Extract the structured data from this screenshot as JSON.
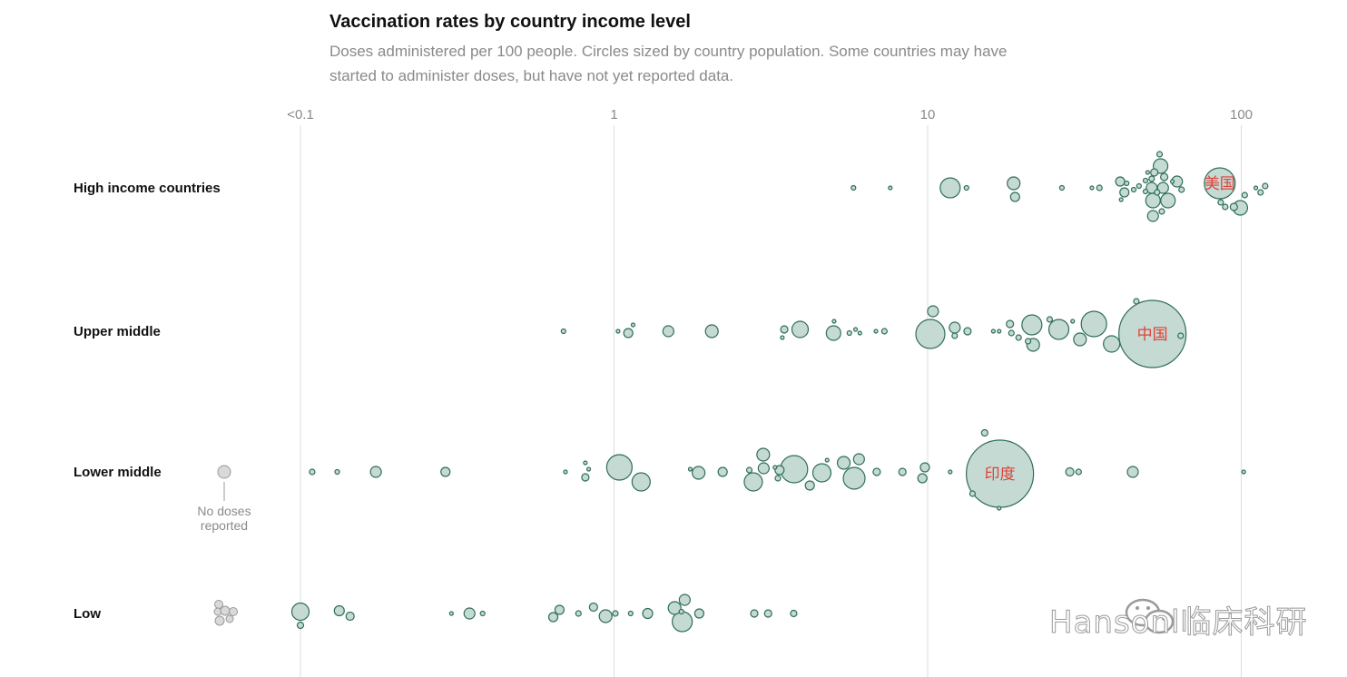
{
  "header": {
    "title": "Vaccination rates by country income level",
    "subtitle": "Doses administered per 100 people. Circles sized by country population. Some countries may have started to administer doses, but have not yet reported data."
  },
  "annotation": {
    "no_doses": "No doses reported"
  },
  "labels": {
    "usa": "美国",
    "china": "中国",
    "india": "印度"
  },
  "watermark": {
    "text": "Hansonl临床科研",
    "icon": "wechat-icon"
  },
  "colors": {
    "bubble_fill": "#c4dad3",
    "bubble_stroke": "#2f6e5a",
    "none_fill": "#d9d9d9",
    "none_stroke": "#999999",
    "label_red": "#e0413a",
    "grid": "#dddddd"
  },
  "chart_data": {
    "type": "scatter",
    "title": "Vaccination rates by country income level",
    "xscale": "log",
    "xlim": [
      0.1,
      100
    ],
    "xticks": [
      {
        "value": 0.1,
        "label": "<0.1"
      },
      {
        "value": 1,
        "label": "1"
      },
      {
        "value": 10,
        "label": "10"
      },
      {
        "value": 100,
        "label": "100"
      }
    ],
    "grid": true,
    "rows": [
      {
        "name": "High income countries",
        "points": [
          {
            "x": 5.8,
            "dy": 0,
            "r": 2.5
          },
          {
            "x": 7.6,
            "dy": 0,
            "r": 2
          },
          {
            "x": 11.8,
            "dy": 0,
            "r": 11
          },
          {
            "x": 13.3,
            "dy": 0,
            "r": 2.5
          },
          {
            "x": 18.8,
            "dy": -5,
            "r": 7
          },
          {
            "x": 19.0,
            "dy": 10,
            "r": 5
          },
          {
            "x": 26.8,
            "dy": 0,
            "r": 2.5
          },
          {
            "x": 33.4,
            "dy": 0,
            "r": 2
          },
          {
            "x": 35.3,
            "dy": 0,
            "r": 3
          },
          {
            "x": 41.1,
            "dy": -7,
            "r": 5
          },
          {
            "x": 42.4,
            "dy": 5,
            "r": 5
          },
          {
            "x": 41.4,
            "dy": 13,
            "r": 2
          },
          {
            "x": 43.1,
            "dy": -5,
            "r": 2.5
          },
          {
            "x": 45.4,
            "dy": 2,
            "r": 2.5
          },
          {
            "x": 47.2,
            "dy": -2,
            "r": 2.5
          },
          {
            "x": 49.5,
            "dy": -8,
            "r": 2.5
          },
          {
            "x": 49.5,
            "dy": 4,
            "r": 2.5
          },
          {
            "x": 50.3,
            "dy": -17,
            "r": 2
          },
          {
            "x": 51.8,
            "dy": -10,
            "r": 3
          },
          {
            "x": 51.8,
            "dy": 0,
            "r": 6
          },
          {
            "x": 52.3,
            "dy": 14,
            "r": 8
          },
          {
            "x": 52.3,
            "dy": 31,
            "r": 6
          },
          {
            "x": 52.8,
            "dy": -17,
            "r": 4
          },
          {
            "x": 53.9,
            "dy": 5,
            "r": 3
          },
          {
            "x": 54.9,
            "dy": -37,
            "r": 3
          },
          {
            "x": 55.3,
            "dy": -24,
            "r": 8
          },
          {
            "x": 55.8,
            "dy": 26,
            "r": 3
          },
          {
            "x": 56.8,
            "dy": -12,
            "r": 4
          },
          {
            "x": 56.3,
            "dy": 0,
            "r": 6
          },
          {
            "x": 58.4,
            "dy": 14,
            "r": 8
          },
          {
            "x": 60.3,
            "dy": -7,
            "r": 2
          },
          {
            "x": 62.4,
            "dy": -7,
            "r": 6
          },
          {
            "x": 64.5,
            "dy": 2,
            "r": 3
          },
          {
            "x": 85.4,
            "dy": -5,
            "r": 17,
            "label": "usa"
          },
          {
            "x": 86.0,
            "dy": 16,
            "r": 3
          },
          {
            "x": 88.9,
            "dy": 21,
            "r": 3
          },
          {
            "x": 94.7,
            "dy": 21,
            "r": 4
          },
          {
            "x": 99.3,
            "dy": 22,
            "r": 8
          },
          {
            "x": 102.6,
            "dy": 8,
            "r": 3
          },
          {
            "x": 111.3,
            "dy": 0,
            "r": 2
          },
          {
            "x": 115.2,
            "dy": 5,
            "r": 3
          },
          {
            "x": 119.2,
            "dy": -2,
            "r": 3
          }
        ]
      },
      {
        "name": "Upper middle",
        "points": [
          {
            "x": 0.69,
            "dy": 0,
            "r": 2.5
          },
          {
            "x": 1.03,
            "dy": 0,
            "r": 2
          },
          {
            "x": 1.11,
            "dy": 2,
            "r": 5
          },
          {
            "x": 1.15,
            "dy": -7,
            "r": 2
          },
          {
            "x": 1.49,
            "dy": 0,
            "r": 6
          },
          {
            "x": 2.05,
            "dy": 0,
            "r": 7
          },
          {
            "x": 3.49,
            "dy": -2,
            "r": 4
          },
          {
            "x": 3.44,
            "dy": 7,
            "r": 2
          },
          {
            "x": 3.92,
            "dy": -2,
            "r": 9
          },
          {
            "x": 5.01,
            "dy": 2,
            "r": 8
          },
          {
            "x": 5.03,
            "dy": -11,
            "r": 2
          },
          {
            "x": 5.63,
            "dy": 2,
            "r": 2.5
          },
          {
            "x": 5.89,
            "dy": -2,
            "r": 2
          },
          {
            "x": 6.08,
            "dy": 2,
            "r": 2
          },
          {
            "x": 6.84,
            "dy": 0,
            "r": 2
          },
          {
            "x": 7.28,
            "dy": 0,
            "r": 3
          },
          {
            "x": 10.2,
            "dy": 3,
            "r": 16
          },
          {
            "x": 10.4,
            "dy": -22,
            "r": 6
          },
          {
            "x": 12.2,
            "dy": -4,
            "r": 6
          },
          {
            "x": 12.2,
            "dy": 5,
            "r": 3
          },
          {
            "x": 13.4,
            "dy": 0,
            "r": 4
          },
          {
            "x": 16.2,
            "dy": 0,
            "r": 2
          },
          {
            "x": 16.9,
            "dy": 0,
            "r": 2
          },
          {
            "x": 18.3,
            "dy": -8,
            "r": 4
          },
          {
            "x": 18.5,
            "dy": 2,
            "r": 3
          },
          {
            "x": 19.5,
            "dy": 7,
            "r": 3
          },
          {
            "x": 20.9,
            "dy": 11,
            "r": 3
          },
          {
            "x": 21.5,
            "dy": -7,
            "r": 11
          },
          {
            "x": 21.7,
            "dy": 15,
            "r": 7
          },
          {
            "x": 24.5,
            "dy": -13,
            "r": 3
          },
          {
            "x": 26.2,
            "dy": -2,
            "r": 11
          },
          {
            "x": 29.0,
            "dy": -11,
            "r": 2
          },
          {
            "x": 30.6,
            "dy": 9,
            "r": 7
          },
          {
            "x": 33.9,
            "dy": -8,
            "r": 14
          },
          {
            "x": 38.6,
            "dy": 14,
            "r": 9
          },
          {
            "x": 46.3,
            "dy": -33,
            "r": 3
          },
          {
            "x": 52.1,
            "dy": 3,
            "r": 37,
            "label": "china"
          },
          {
            "x": 64.1,
            "dy": 5,
            "r": 3
          }
        ]
      },
      {
        "name": "Lower middle",
        "no_dose_points": [
          {
            "r": 7,
            "dx": 0,
            "dy": 0
          }
        ],
        "points": [
          {
            "x": 0.109,
            "dy": 0,
            "r": 3
          },
          {
            "x": 0.131,
            "dy": 0,
            "r": 2.5
          },
          {
            "x": 0.174,
            "dy": 0,
            "r": 6
          },
          {
            "x": 0.29,
            "dy": 0,
            "r": 5
          },
          {
            "x": 0.7,
            "dy": 0,
            "r": 2
          },
          {
            "x": 0.81,
            "dy": -10,
            "r": 2
          },
          {
            "x": 0.83,
            "dy": -3,
            "r": 2
          },
          {
            "x": 0.81,
            "dy": 6,
            "r": 4
          },
          {
            "x": 1.04,
            "dy": -5,
            "r": 14
          },
          {
            "x": 1.22,
            "dy": 11,
            "r": 10
          },
          {
            "x": 1.75,
            "dy": -3,
            "r": 2
          },
          {
            "x": 1.86,
            "dy": 1,
            "r": 7
          },
          {
            "x": 2.22,
            "dy": 0,
            "r": 5
          },
          {
            "x": 2.7,
            "dy": -2,
            "r": 3
          },
          {
            "x": 2.78,
            "dy": 11,
            "r": 10
          },
          {
            "x": 2.99,
            "dy": -19,
            "r": 7
          },
          {
            "x": 3.0,
            "dy": -4,
            "r": 6
          },
          {
            "x": 3.26,
            "dy": -5,
            "r": 2
          },
          {
            "x": 3.37,
            "dy": -2,
            "r": 5
          },
          {
            "x": 3.33,
            "dy": 7,
            "r": 3
          },
          {
            "x": 3.75,
            "dy": -3,
            "r": 15
          },
          {
            "x": 4.21,
            "dy": 15,
            "r": 5
          },
          {
            "x": 4.6,
            "dy": 1,
            "r": 10
          },
          {
            "x": 4.78,
            "dy": -13,
            "r": 2
          },
          {
            "x": 5.4,
            "dy": -10,
            "r": 7
          },
          {
            "x": 5.83,
            "dy": 7,
            "r": 12
          },
          {
            "x": 6.04,
            "dy": -14,
            "r": 6
          },
          {
            "x": 6.88,
            "dy": 0,
            "r": 4
          },
          {
            "x": 8.31,
            "dy": 0,
            "r": 4
          },
          {
            "x": 9.62,
            "dy": 7,
            "r": 5
          },
          {
            "x": 9.8,
            "dy": -5,
            "r": 5
          },
          {
            "x": 11.8,
            "dy": 0,
            "r": 2
          },
          {
            "x": 13.9,
            "dy": 24,
            "r": 3
          },
          {
            "x": 15.2,
            "dy": -43,
            "r": 3.5
          },
          {
            "x": 17.0,
            "dy": 2,
            "r": 37,
            "label": "india"
          },
          {
            "x": 16.9,
            "dy": 40,
            "r": 2
          },
          {
            "x": 28.4,
            "dy": 0,
            "r": 4.5
          },
          {
            "x": 30.3,
            "dy": 0,
            "r": 3
          },
          {
            "x": 45.1,
            "dy": 0,
            "r": 6
          },
          {
            "x": 101.8,
            "dy": 0,
            "r": 2
          }
        ]
      },
      {
        "name": "Low",
        "no_dose_points": [
          {
            "r": 4.5,
            "dx": -6,
            "dy": -10
          },
          {
            "r": 4,
            "dx": -7,
            "dy": -2
          },
          {
            "r": 5,
            "dx": 1,
            "dy": -3
          },
          {
            "r": 4.5,
            "dx": 10,
            "dy": -2
          },
          {
            "r": 5,
            "dx": -5,
            "dy": 8
          },
          {
            "r": 4,
            "dx": 6,
            "dy": 6
          }
        ],
        "points": [
          {
            "x": 0.1,
            "dy": -2,
            "r": 9.5
          },
          {
            "x": 0.1,
            "dy": 13,
            "r": 3.5
          },
          {
            "x": 0.133,
            "dy": -3,
            "r": 5.5
          },
          {
            "x": 0.144,
            "dy": 3,
            "r": 4.5
          },
          {
            "x": 0.303,
            "dy": 0,
            "r": 2
          },
          {
            "x": 0.346,
            "dy": 0,
            "r": 6
          },
          {
            "x": 0.381,
            "dy": 0,
            "r": 2.5
          },
          {
            "x": 0.64,
            "dy": 4,
            "r": 5
          },
          {
            "x": 0.67,
            "dy": -4,
            "r": 5
          },
          {
            "x": 0.77,
            "dy": 0,
            "r": 3
          },
          {
            "x": 0.86,
            "dy": -7,
            "r": 4.5
          },
          {
            "x": 0.94,
            "dy": 3,
            "r": 7
          },
          {
            "x": 1.01,
            "dy": 0,
            "r": 3
          },
          {
            "x": 1.13,
            "dy": 0,
            "r": 2.5
          },
          {
            "x": 1.28,
            "dy": 0,
            "r": 5.5
          },
          {
            "x": 1.56,
            "dy": -6,
            "r": 7
          },
          {
            "x": 1.64,
            "dy": -2,
            "r": 2.5
          },
          {
            "x": 1.68,
            "dy": -15,
            "r": 6
          },
          {
            "x": 1.65,
            "dy": 9,
            "r": 11
          },
          {
            "x": 1.87,
            "dy": 0,
            "r": 5
          },
          {
            "x": 2.8,
            "dy": 0,
            "r": 4
          },
          {
            "x": 3.1,
            "dy": 0,
            "r": 4
          },
          {
            "x": 3.74,
            "dy": 0,
            "r": 3.5
          }
        ]
      }
    ]
  }
}
